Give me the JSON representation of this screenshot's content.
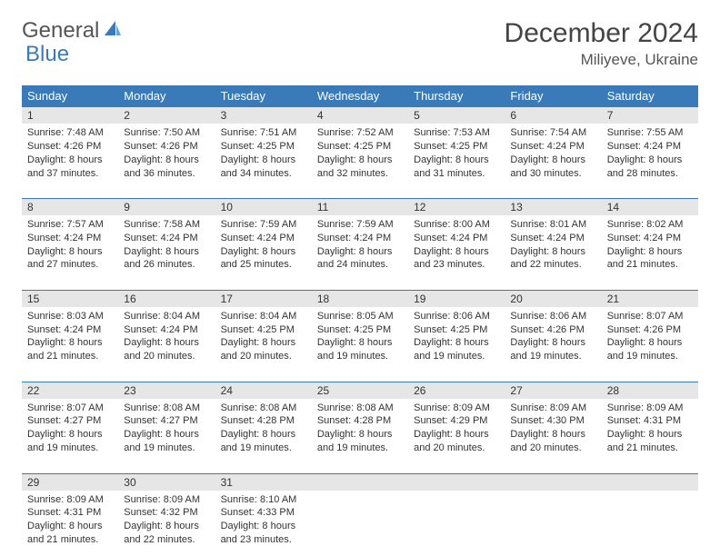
{
  "brand": {
    "general": "General",
    "blue": "Blue"
  },
  "title": "December 2024",
  "location": "Miliyeve, Ukraine",
  "colors": {
    "header_bg": "#3a7ab8",
    "header_text": "#ffffff",
    "daynum_bg": "#e6e6e6",
    "border": "#3a7ab8",
    "text": "#333333",
    "brand_blue": "#3a7ab8"
  },
  "day_headers": [
    "Sunday",
    "Monday",
    "Tuesday",
    "Wednesday",
    "Thursday",
    "Friday",
    "Saturday"
  ],
  "weeks": [
    [
      {
        "n": "1",
        "sr": "7:48 AM",
        "ss": "4:26 PM",
        "dl": "8 hours and 37 minutes."
      },
      {
        "n": "2",
        "sr": "7:50 AM",
        "ss": "4:26 PM",
        "dl": "8 hours and 36 minutes."
      },
      {
        "n": "3",
        "sr": "7:51 AM",
        "ss": "4:25 PM",
        "dl": "8 hours and 34 minutes."
      },
      {
        "n": "4",
        "sr": "7:52 AM",
        "ss": "4:25 PM",
        "dl": "8 hours and 32 minutes."
      },
      {
        "n": "5",
        "sr": "7:53 AM",
        "ss": "4:25 PM",
        "dl": "8 hours and 31 minutes."
      },
      {
        "n": "6",
        "sr": "7:54 AM",
        "ss": "4:24 PM",
        "dl": "8 hours and 30 minutes."
      },
      {
        "n": "7",
        "sr": "7:55 AM",
        "ss": "4:24 PM",
        "dl": "8 hours and 28 minutes."
      }
    ],
    [
      {
        "n": "8",
        "sr": "7:57 AM",
        "ss": "4:24 PM",
        "dl": "8 hours and 27 minutes."
      },
      {
        "n": "9",
        "sr": "7:58 AM",
        "ss": "4:24 PM",
        "dl": "8 hours and 26 minutes."
      },
      {
        "n": "10",
        "sr": "7:59 AM",
        "ss": "4:24 PM",
        "dl": "8 hours and 25 minutes."
      },
      {
        "n": "11",
        "sr": "7:59 AM",
        "ss": "4:24 PM",
        "dl": "8 hours and 24 minutes."
      },
      {
        "n": "12",
        "sr": "8:00 AM",
        "ss": "4:24 PM",
        "dl": "8 hours and 23 minutes."
      },
      {
        "n": "13",
        "sr": "8:01 AM",
        "ss": "4:24 PM",
        "dl": "8 hours and 22 minutes."
      },
      {
        "n": "14",
        "sr": "8:02 AM",
        "ss": "4:24 PM",
        "dl": "8 hours and 21 minutes."
      }
    ],
    [
      {
        "n": "15",
        "sr": "8:03 AM",
        "ss": "4:24 PM",
        "dl": "8 hours and 21 minutes."
      },
      {
        "n": "16",
        "sr": "8:04 AM",
        "ss": "4:24 PM",
        "dl": "8 hours and 20 minutes."
      },
      {
        "n": "17",
        "sr": "8:04 AM",
        "ss": "4:25 PM",
        "dl": "8 hours and 20 minutes."
      },
      {
        "n": "18",
        "sr": "8:05 AM",
        "ss": "4:25 PM",
        "dl": "8 hours and 19 minutes."
      },
      {
        "n": "19",
        "sr": "8:06 AM",
        "ss": "4:25 PM",
        "dl": "8 hours and 19 minutes."
      },
      {
        "n": "20",
        "sr": "8:06 AM",
        "ss": "4:26 PM",
        "dl": "8 hours and 19 minutes."
      },
      {
        "n": "21",
        "sr": "8:07 AM",
        "ss": "4:26 PM",
        "dl": "8 hours and 19 minutes."
      }
    ],
    [
      {
        "n": "22",
        "sr": "8:07 AM",
        "ss": "4:27 PM",
        "dl": "8 hours and 19 minutes."
      },
      {
        "n": "23",
        "sr": "8:08 AM",
        "ss": "4:27 PM",
        "dl": "8 hours and 19 minutes."
      },
      {
        "n": "24",
        "sr": "8:08 AM",
        "ss": "4:28 PM",
        "dl": "8 hours and 19 minutes."
      },
      {
        "n": "25",
        "sr": "8:08 AM",
        "ss": "4:28 PM",
        "dl": "8 hours and 19 minutes."
      },
      {
        "n": "26",
        "sr": "8:09 AM",
        "ss": "4:29 PM",
        "dl": "8 hours and 20 minutes."
      },
      {
        "n": "27",
        "sr": "8:09 AM",
        "ss": "4:30 PM",
        "dl": "8 hours and 20 minutes."
      },
      {
        "n": "28",
        "sr": "8:09 AM",
        "ss": "4:31 PM",
        "dl": "8 hours and 21 minutes."
      }
    ],
    [
      {
        "n": "29",
        "sr": "8:09 AM",
        "ss": "4:31 PM",
        "dl": "8 hours and 21 minutes."
      },
      {
        "n": "30",
        "sr": "8:09 AM",
        "ss": "4:32 PM",
        "dl": "8 hours and 22 minutes."
      },
      {
        "n": "31",
        "sr": "8:10 AM",
        "ss": "4:33 PM",
        "dl": "8 hours and 23 minutes."
      },
      null,
      null,
      null,
      null
    ]
  ],
  "labels": {
    "sunrise": "Sunrise: ",
    "sunset": "Sunset: ",
    "daylight": "Daylight: "
  }
}
